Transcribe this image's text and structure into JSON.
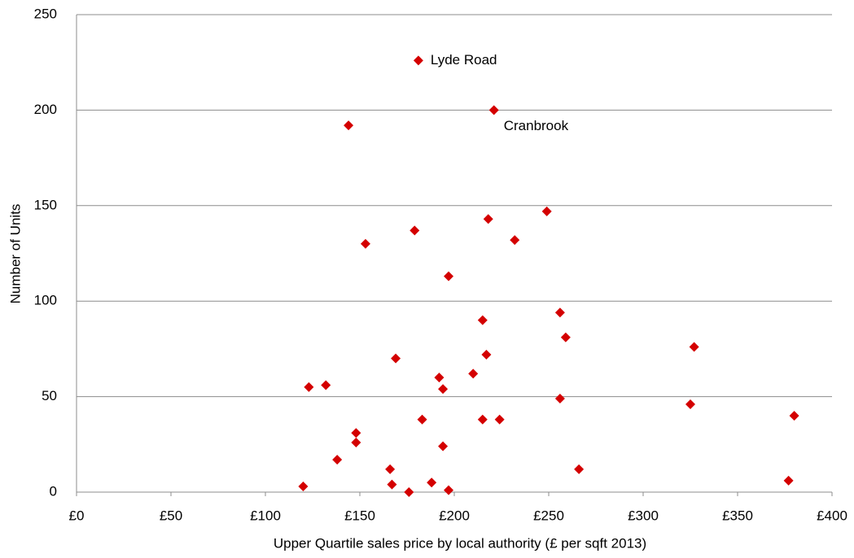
{
  "chart_data": {
    "type": "scatter",
    "x_label": "Upper Quartile sales price by local authority (£ per sqft 2013)",
    "y_label": "Number of Units",
    "xlim": [
      0,
      400
    ],
    "ylim": [
      0,
      250
    ],
    "xticks": [
      {
        "value": 0,
        "label": "£0"
      },
      {
        "value": 50,
        "label": "£50"
      },
      {
        "value": 100,
        "label": "£100"
      },
      {
        "value": 150,
        "label": "£150"
      },
      {
        "value": 200,
        "label": "£200"
      },
      {
        "value": 250,
        "label": "£250"
      },
      {
        "value": 300,
        "label": "£300"
      },
      {
        "value": 350,
        "label": "£350"
      },
      {
        "value": 400,
        "label": "£400"
      }
    ],
    "yticks": [
      0,
      50,
      100,
      150,
      200,
      250
    ],
    "grid": true,
    "color": "#d40000",
    "x": [
      181,
      221,
      144,
      153,
      179,
      218,
      249,
      232,
      197,
      256,
      259,
      215,
      217,
      327,
      169,
      123,
      132,
      192,
      194,
      210,
      256,
      325,
      380,
      148,
      148,
      183,
      215,
      224,
      194,
      138,
      166,
      266,
      167,
      120,
      176,
      188,
      197,
      377
    ],
    "values": [
      226,
      200,
      192,
      130,
      137,
      143,
      147,
      132,
      113,
      94,
      81,
      90,
      72,
      76,
      70,
      55,
      56,
      60,
      54,
      62,
      49,
      46,
      40,
      31,
      26,
      38,
      38,
      38,
      24,
      17,
      12,
      12,
      4,
      3,
      0,
      5,
      1,
      6
    ],
    "annotations": [
      {
        "text": "Lyde Road",
        "x": 181,
        "y": 226
      },
      {
        "text": "Cranbrook",
        "x": 221,
        "y": 200
      }
    ]
  }
}
